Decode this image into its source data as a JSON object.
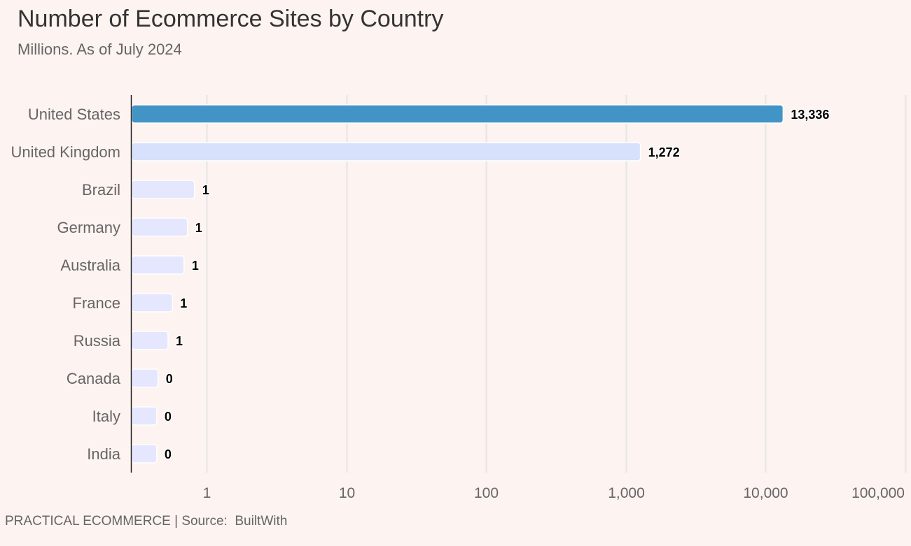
{
  "chart_data": {
    "type": "bar",
    "orientation": "horizontal",
    "title": "Number of Ecommerce Sites by Country",
    "subtitle": "Millions. As of July 2024",
    "xscale": "log",
    "xlim": [
      0.3,
      110000
    ],
    "xticks": [
      1,
      10,
      100,
      1000,
      10000,
      100000
    ],
    "xtick_labels": [
      "1",
      "10",
      "100",
      "1,000",
      "10,000",
      "100,000"
    ],
    "categories": [
      "United States",
      "United Kingdom",
      "Brazil",
      "Germany",
      "Australia",
      "France",
      "Russia",
      "Canada",
      "Italy",
      "India"
    ],
    "values": [
      13336,
      1272,
      0.82,
      0.73,
      0.69,
      0.57,
      0.53,
      0.45,
      0.44,
      0.44
    ],
    "value_labels": [
      "13,336",
      "1,272",
      "1",
      "1",
      "1",
      "1",
      "1",
      "0",
      "0",
      "0"
    ],
    "colors": [
      "#4394c6",
      "#d7e1fb",
      "#e4e7fd",
      "#e4e7fd",
      "#e4e7fd",
      "#e4e7fd",
      "#e4e7fd",
      "#e4e7fd",
      "#e4e7fd",
      "#e4e7fd"
    ],
    "grid": true,
    "footer": "PRACTICAL ECOMMERCE | Source:  BuiltWith"
  }
}
